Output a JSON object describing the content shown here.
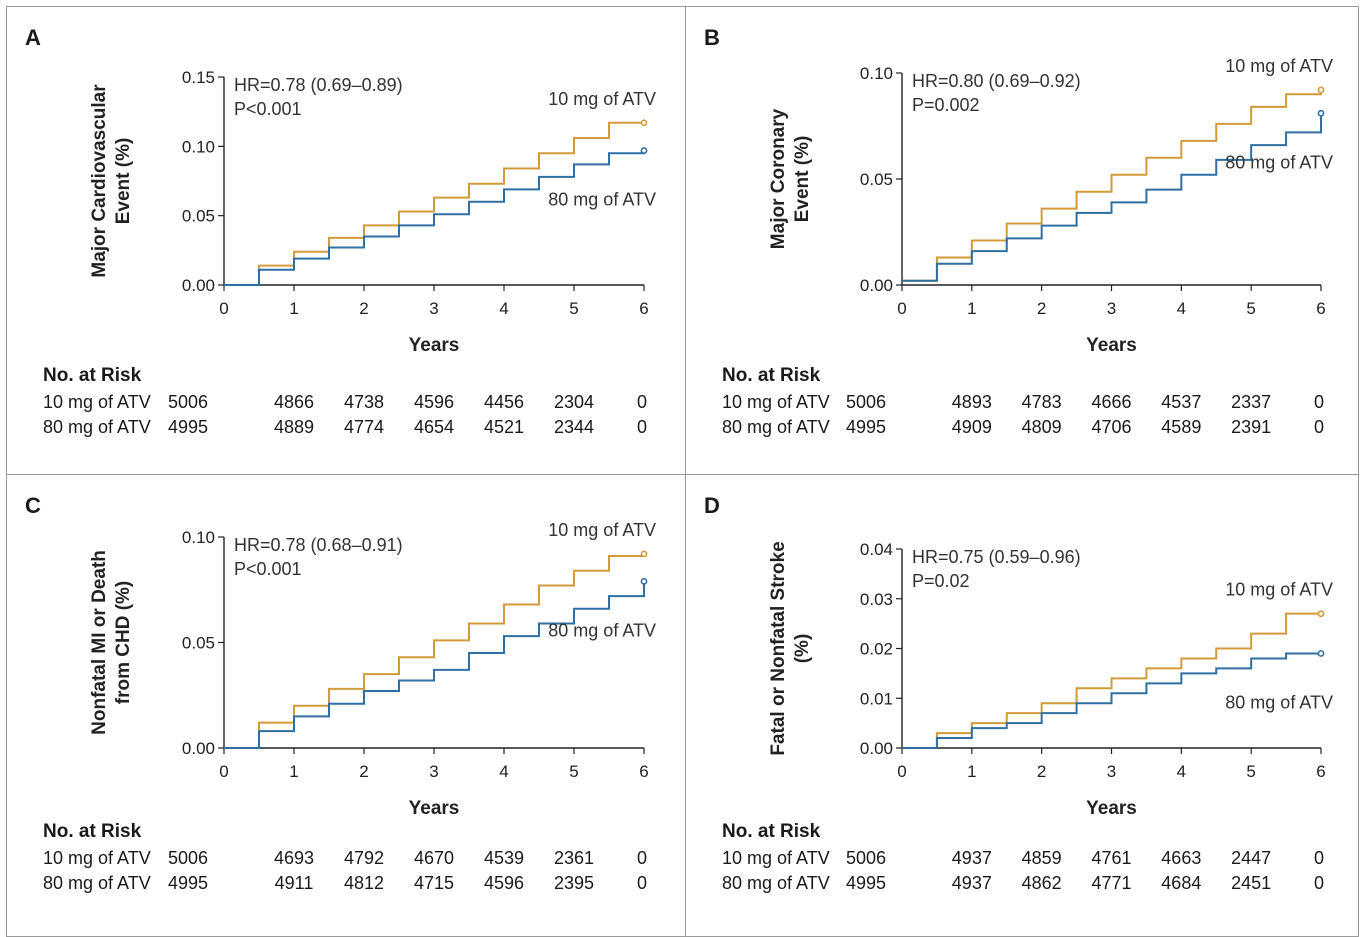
{
  "chart_data": [
    {
      "panel": "A",
      "type": "line",
      "ylabel": [
        "Major Cardiovascular",
        "Event (%)"
      ],
      "xlabel": "Years",
      "ylim": [
        0,
        0.15
      ],
      "xlim": [
        0,
        6
      ],
      "yticks": [
        "0.00",
        "0.05",
        "0.10",
        "0.15"
      ],
      "xticks": [
        "0",
        "1",
        "2",
        "3",
        "4",
        "5",
        "6"
      ],
      "annotation": [
        "HR=0.78 (0.69–0.89)",
        "P<0.001"
      ],
      "colors": {
        "10 mg of ATV": "#d39a3a",
        "80 mg of ATV": "#2f6fa3"
      },
      "series": [
        {
          "name": "10 mg of ATV",
          "x": [
            0,
            0.5,
            1,
            1.5,
            2,
            2.5,
            3,
            3.5,
            4,
            4.5,
            5,
            5.5,
            6
          ],
          "values": [
            0,
            0.014,
            0.024,
            0.034,
            0.043,
            0.053,
            0.063,
            0.073,
            0.084,
            0.095,
            0.106,
            0.117,
            0.117
          ],
          "label_side": "top"
        },
        {
          "name": "80 mg of ATV",
          "x": [
            0,
            0.5,
            1,
            1.5,
            2,
            2.5,
            3,
            3.5,
            4,
            4.5,
            5,
            5.5,
            6
          ],
          "values": [
            0,
            0.011,
            0.019,
            0.027,
            0.035,
            0.043,
            0.051,
            0.06,
            0.069,
            0.078,
            0.087,
            0.095,
            0.097
          ],
          "label_side": "bottom"
        }
      ],
      "risk_table": {
        "title": "No. at Risk",
        "rows": [
          {
            "label": "10 mg of ATV",
            "values": [
              "5006",
              "4866",
              "4738",
              "4596",
              "4456",
              "2304",
              "0"
            ]
          },
          {
            "label": "80 mg of ATV",
            "values": [
              "4995",
              "4889",
              "4774",
              "4654",
              "4521",
              "2344",
              "0"
            ]
          }
        ]
      }
    },
    {
      "panel": "B",
      "type": "line",
      "ylabel": [
        "Major Coronary",
        "Event (%)"
      ],
      "xlabel": "Years",
      "ylim": [
        0,
        0.1
      ],
      "xlim": [
        0,
        6
      ],
      "yticks": [
        "0.00",
        "0.05",
        "0.10"
      ],
      "xticks": [
        "0",
        "1",
        "2",
        "3",
        "4",
        "5",
        "6"
      ],
      "annotation": [
        "HR=0.80 (0.69–0.92)",
        "P=0.002"
      ],
      "colors": {
        "10 mg of ATV": "#d39a3a",
        "80 mg of ATV": "#2f6fa3"
      },
      "series": [
        {
          "name": "10 mg of ATV",
          "x": [
            0,
            0.5,
            1,
            1.5,
            2,
            2.5,
            3,
            3.5,
            4,
            4.5,
            5,
            5.5,
            6
          ],
          "values": [
            0.002,
            0.013,
            0.021,
            0.029,
            0.036,
            0.044,
            0.052,
            0.06,
            0.068,
            0.076,
            0.084,
            0.09,
            0.092
          ],
          "label_side": "top"
        },
        {
          "name": "80 mg of ATV",
          "x": [
            0,
            0.5,
            1,
            1.5,
            2,
            2.5,
            3,
            3.5,
            4,
            4.5,
            5,
            5.5,
            6
          ],
          "values": [
            0.002,
            0.01,
            0.016,
            0.022,
            0.028,
            0.034,
            0.039,
            0.045,
            0.052,
            0.059,
            0.066,
            0.072,
            0.081
          ],
          "label_side": "bottom"
        }
      ],
      "risk_table": {
        "title": "No. at Risk",
        "rows": [
          {
            "label": "10 mg of ATV",
            "values": [
              "5006",
              "4893",
              "4783",
              "4666",
              "4537",
              "2337",
              "0"
            ]
          },
          {
            "label": "80 mg of ATV",
            "values": [
              "4995",
              "4909",
              "4809",
              "4706",
              "4589",
              "2391",
              "0"
            ]
          }
        ]
      }
    },
    {
      "panel": "C",
      "type": "line",
      "ylabel": [
        "Nonfatal MI or Death",
        "from CHD (%)"
      ],
      "xlabel": "Years",
      "ylim": [
        0,
        0.1
      ],
      "xlim": [
        0,
        6
      ],
      "yticks": [
        "0.00",
        "0.05",
        "0.10"
      ],
      "xticks": [
        "0",
        "1",
        "2",
        "3",
        "4",
        "5",
        "6"
      ],
      "annotation": [
        "HR=0.78 (0.68–0.91)",
        "P<0.001"
      ],
      "colors": {
        "10 mg of ATV": "#d39a3a",
        "80 mg of ATV": "#2f6fa3"
      },
      "series": [
        {
          "name": "10 mg of ATV",
          "x": [
            0,
            0.5,
            1,
            1.5,
            2,
            2.5,
            3,
            3.5,
            4,
            4.5,
            5,
            5.5,
            6
          ],
          "values": [
            0,
            0.012,
            0.02,
            0.028,
            0.035,
            0.043,
            0.051,
            0.059,
            0.068,
            0.077,
            0.084,
            0.091,
            0.092
          ],
          "label_side": "top"
        },
        {
          "name": "80 mg of ATV",
          "x": [
            0,
            0.5,
            1,
            1.5,
            2,
            2.5,
            3,
            3.5,
            4,
            4.5,
            5,
            5.5,
            6
          ],
          "values": [
            0,
            0.008,
            0.015,
            0.021,
            0.027,
            0.032,
            0.037,
            0.045,
            0.053,
            0.059,
            0.066,
            0.072,
            0.079
          ],
          "label_side": "bottom"
        }
      ],
      "risk_table": {
        "title": "No. at Risk",
        "rows": [
          {
            "label": "10 mg of ATV",
            "values": [
              "5006",
              "4693",
              "4792",
              "4670",
              "4539",
              "2361",
              "0"
            ]
          },
          {
            "label": "80 mg of ATV",
            "values": [
              "4995",
              "4911",
              "4812",
              "4715",
              "4596",
              "2395",
              "0"
            ]
          }
        ]
      }
    },
    {
      "panel": "D",
      "type": "line",
      "ylabel": [
        "Fatal or Nonfatal Stroke",
        "(%)"
      ],
      "xlabel": "Years",
      "ylim": [
        0,
        0.04
      ],
      "xlim": [
        0,
        6
      ],
      "yticks": [
        "0.00",
        "0.01",
        "0.02",
        "0.03",
        "0.04"
      ],
      "xticks": [
        "0",
        "1",
        "2",
        "3",
        "4",
        "5",
        "6"
      ],
      "annotation": [
        "HR=0.75 (0.59–0.96)",
        "P=0.02"
      ],
      "colors": {
        "10 mg of ATV": "#d39a3a",
        "80 mg of ATV": "#2f6fa3"
      },
      "series": [
        {
          "name": "10 mg of ATV",
          "x": [
            0,
            0.5,
            1,
            1.5,
            2,
            2.5,
            3,
            3.5,
            4,
            4.5,
            5,
            5.5,
            6
          ],
          "values": [
            0,
            0.003,
            0.005,
            0.007,
            0.009,
            0.012,
            0.014,
            0.016,
            0.018,
            0.02,
            0.023,
            0.027,
            0.027
          ],
          "label_side": "top"
        },
        {
          "name": "80 mg of ATV",
          "x": [
            0,
            0.5,
            1,
            1.5,
            2,
            2.5,
            3,
            3.5,
            4,
            4.5,
            5,
            5.5,
            6
          ],
          "values": [
            0,
            0.002,
            0.004,
            0.005,
            0.007,
            0.009,
            0.011,
            0.013,
            0.015,
            0.016,
            0.018,
            0.019,
            0.019
          ],
          "label_side": "bottom"
        }
      ],
      "risk_table": {
        "title": "No. at Risk",
        "rows": [
          {
            "label": "10 mg of ATV",
            "values": [
              "5006",
              "4937",
              "4859",
              "4761",
              "4663",
              "2447",
              "0"
            ]
          },
          {
            "label": "80 mg of ATV",
            "values": [
              "4995",
              "4937",
              "4862",
              "4771",
              "4684",
              "2451",
              "0"
            ]
          }
        ]
      }
    }
  ]
}
